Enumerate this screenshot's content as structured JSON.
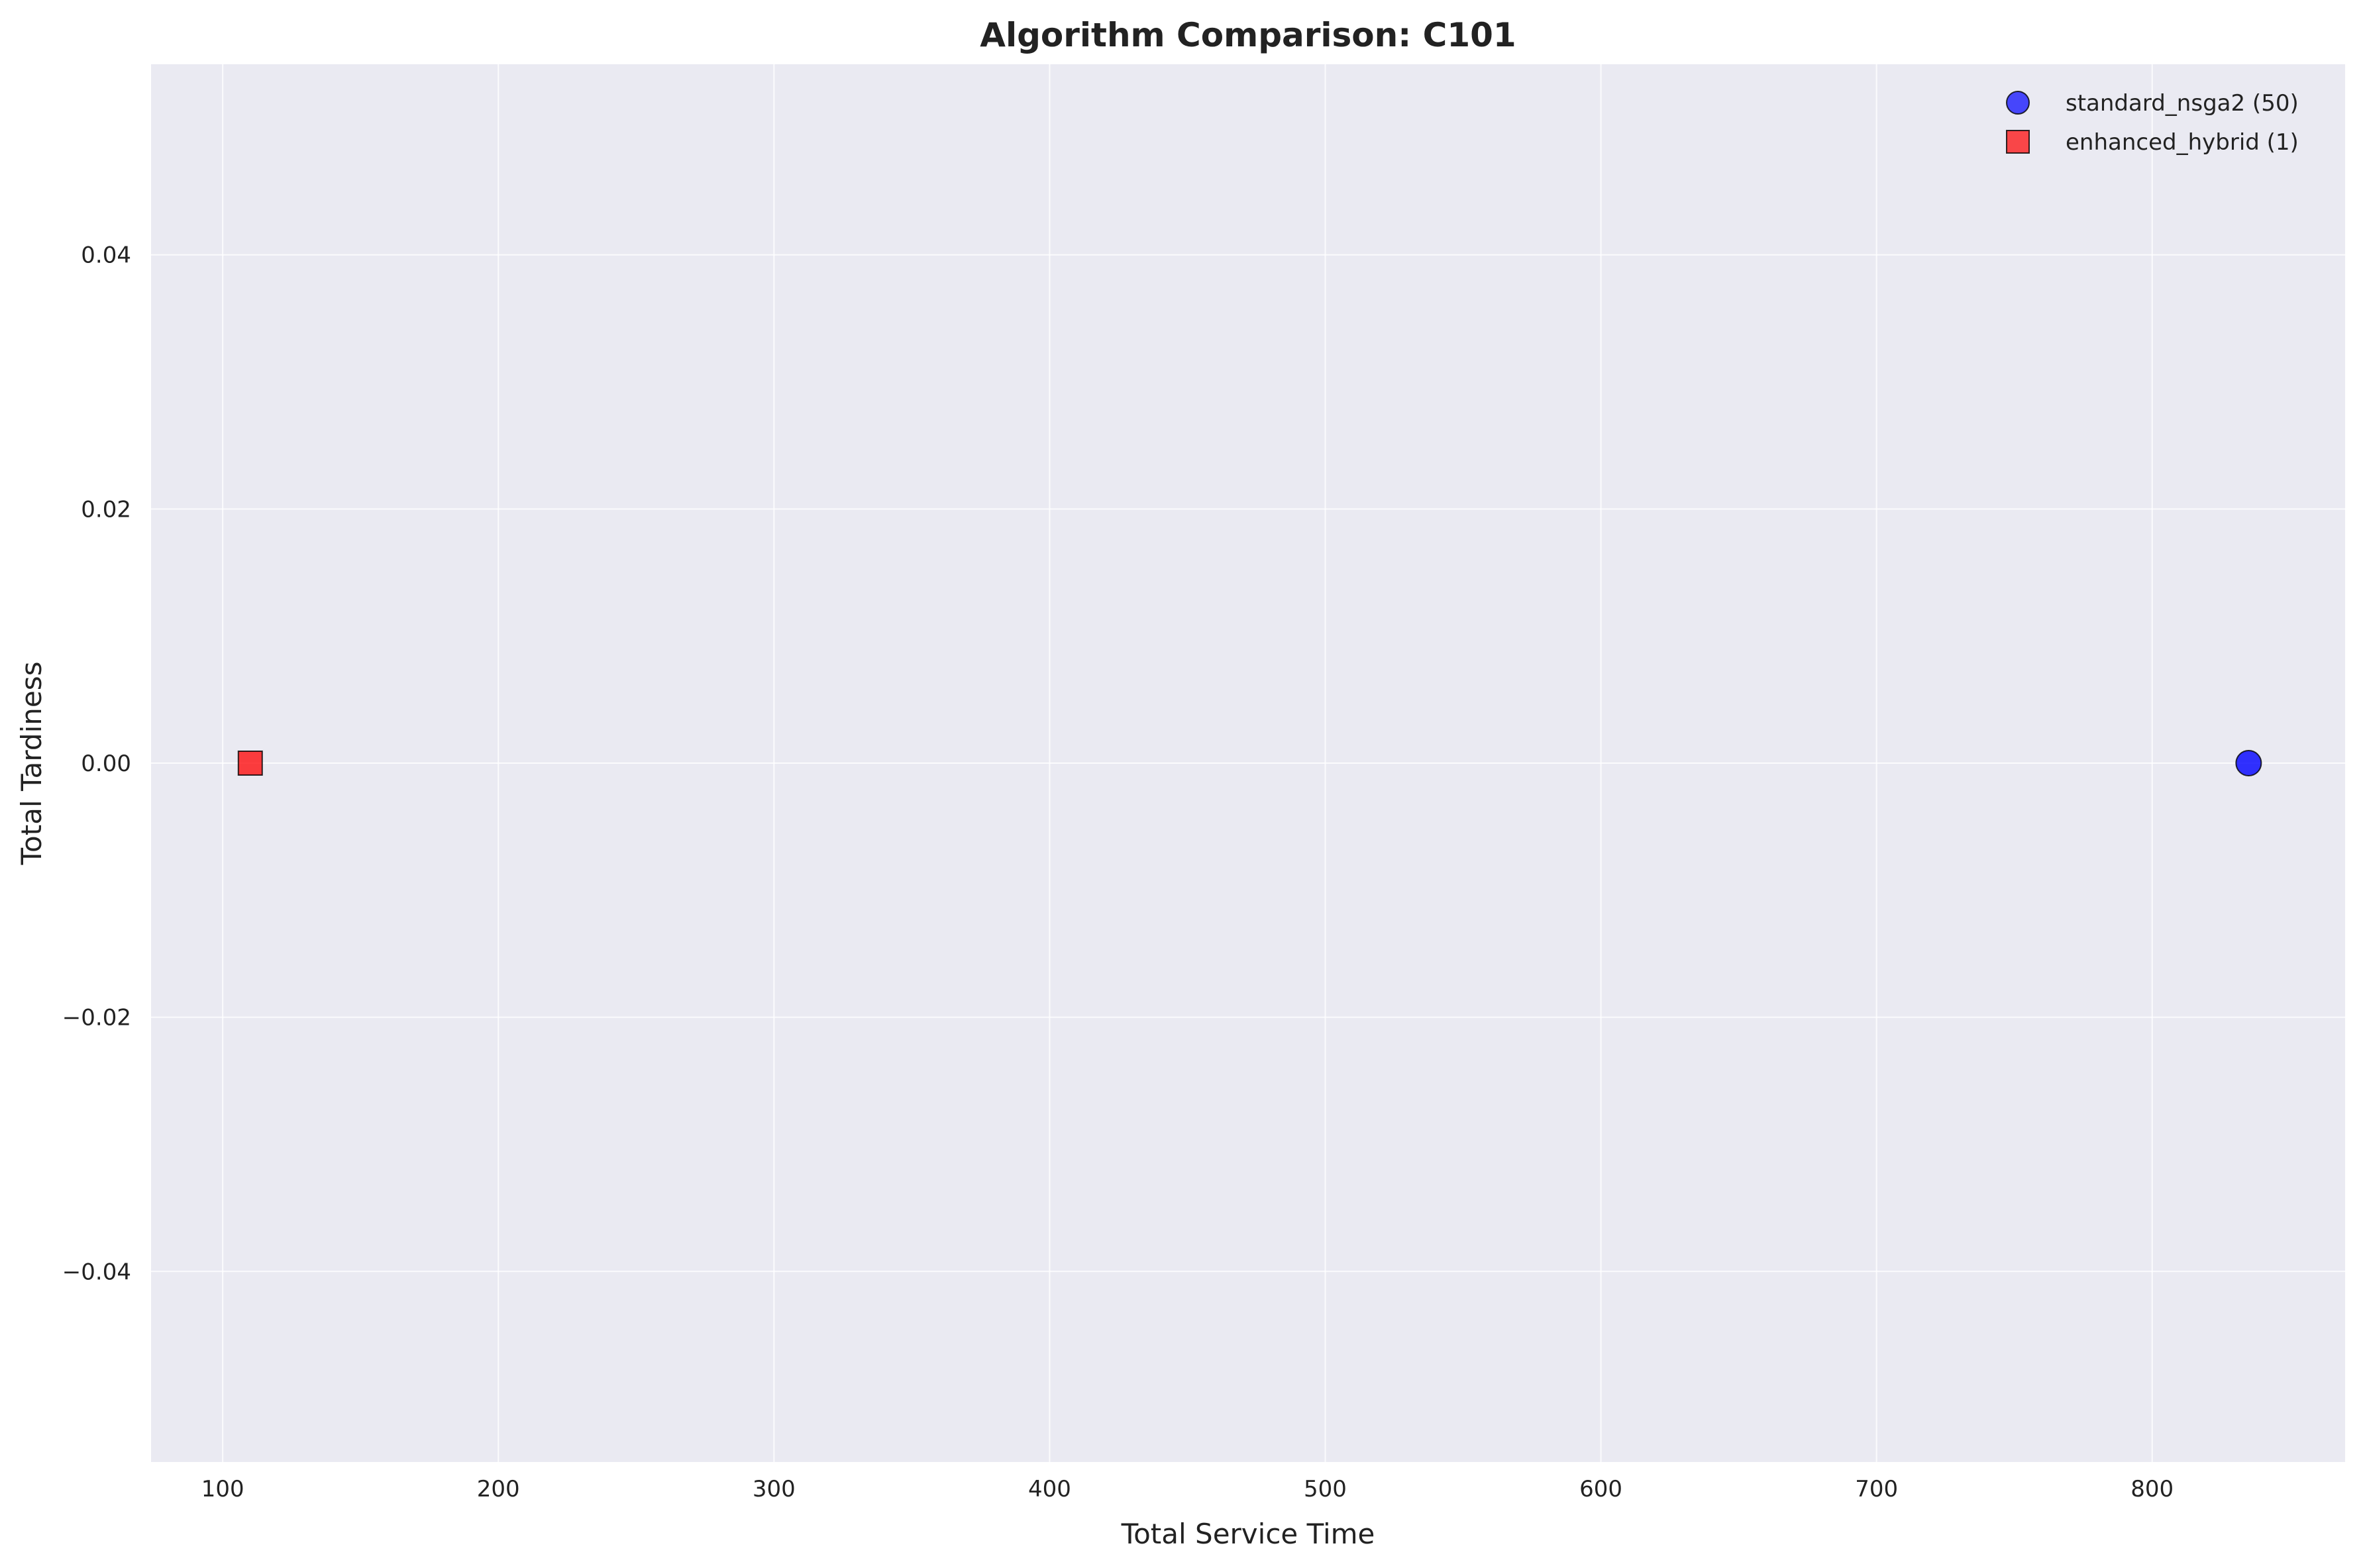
{
  "chart_data": {
    "type": "scatter",
    "title": "Algorithm Comparison: C101",
    "xlabel": "Total Service Time",
    "ylabel": "Total Tardiness",
    "xlim": [
      74,
      870
    ],
    "ylim": [
      -0.055,
      0.055
    ],
    "x_ticks": [
      100,
      200,
      300,
      400,
      500,
      600,
      700,
      800
    ],
    "x_tick_labels": [
      "100",
      "200",
      "300",
      "400",
      "500",
      "600",
      "700",
      "800"
    ],
    "y_ticks": [
      0.04,
      0.02,
      0.0,
      -0.02,
      -0.04
    ],
    "y_tick_labels": [
      "0.04",
      "0.02",
      "0.00",
      "−0.02",
      "−0.04"
    ],
    "grid": true,
    "legend_position": "top-right",
    "background_color": "#eaeaf2",
    "series": [
      {
        "name": "standard_nsga2 (50)",
        "marker": "circle",
        "color": "#0000ff",
        "points": [
          {
            "x": 835,
            "y": 0.0
          }
        ]
      },
      {
        "name": "enhanced_hybrid (1)",
        "marker": "square",
        "color": "#ff0000",
        "points": [
          {
            "x": 110,
            "y": 0.0
          }
        ]
      }
    ]
  }
}
